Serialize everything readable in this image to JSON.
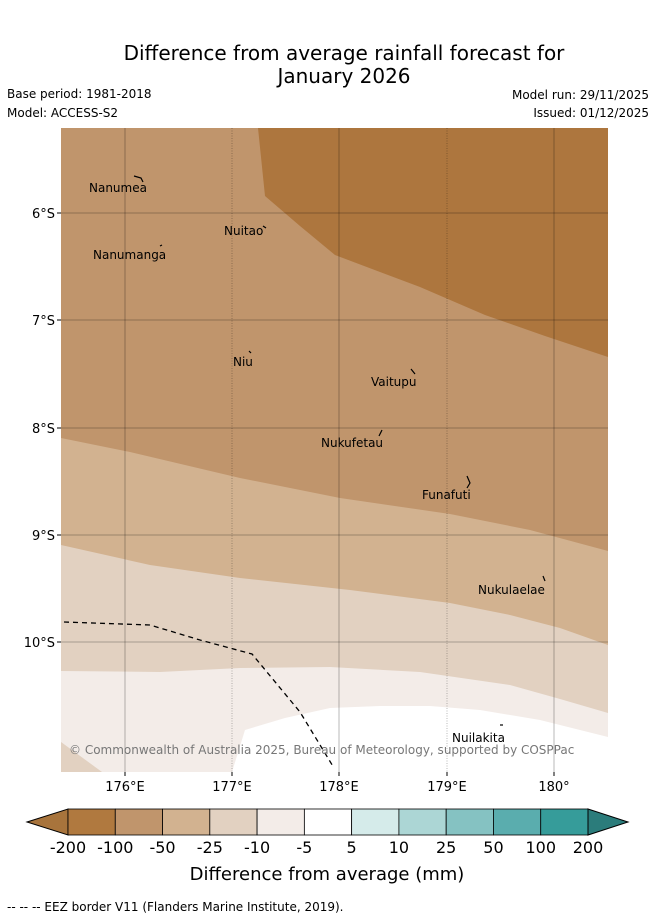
{
  "header": {
    "title_line1": "Difference from average rainfall forecast for",
    "title_line2": "January 2026",
    "base_period": "Base period: 1981-2018",
    "model": "Model: ACCESS-S2",
    "model_run": "Model run: 29/11/2025",
    "issued": "Issued: 01/12/2025"
  },
  "map": {
    "region": "Tuvalu",
    "lat_ticks": [
      "6°S",
      "7°S",
      "8°S",
      "9°S",
      "10°S"
    ],
    "lon_ticks": [
      "176°E",
      "177°E",
      "178°E",
      "179°E",
      "180°"
    ],
    "places": [
      "Nanumea",
      "Nuitao",
      "Nanumanga",
      "Niu",
      "Vaitupu",
      "Nukufetau",
      "Funafuti",
      "Nukulaelae",
      "Nuilakita"
    ],
    "copyright": "© Commonwealth of Australia 2025, Bureau of Meteorology, supported by COSPPac"
  },
  "colorbar": {
    "labels": [
      "-200",
      "-100",
      "-50",
      "-25",
      "-10",
      "-5",
      "5",
      "10",
      "25",
      "50",
      "100",
      "200"
    ],
    "colors": [
      "#a8743c",
      "#b0793f",
      "#c0956c",
      "#d2b290",
      "#e2d1c1",
      "#f3ece8",
      "#ffffff",
      "#d5ebea",
      "#acd6d5",
      "#85c2c2",
      "#5aadae",
      "#369c9a",
      "#2b7c7b"
    ],
    "title": "Difference from average (mm)"
  },
  "footnote": "--  --  -- EEZ border V11 (Flanders Marine Institute, 2019)."
}
